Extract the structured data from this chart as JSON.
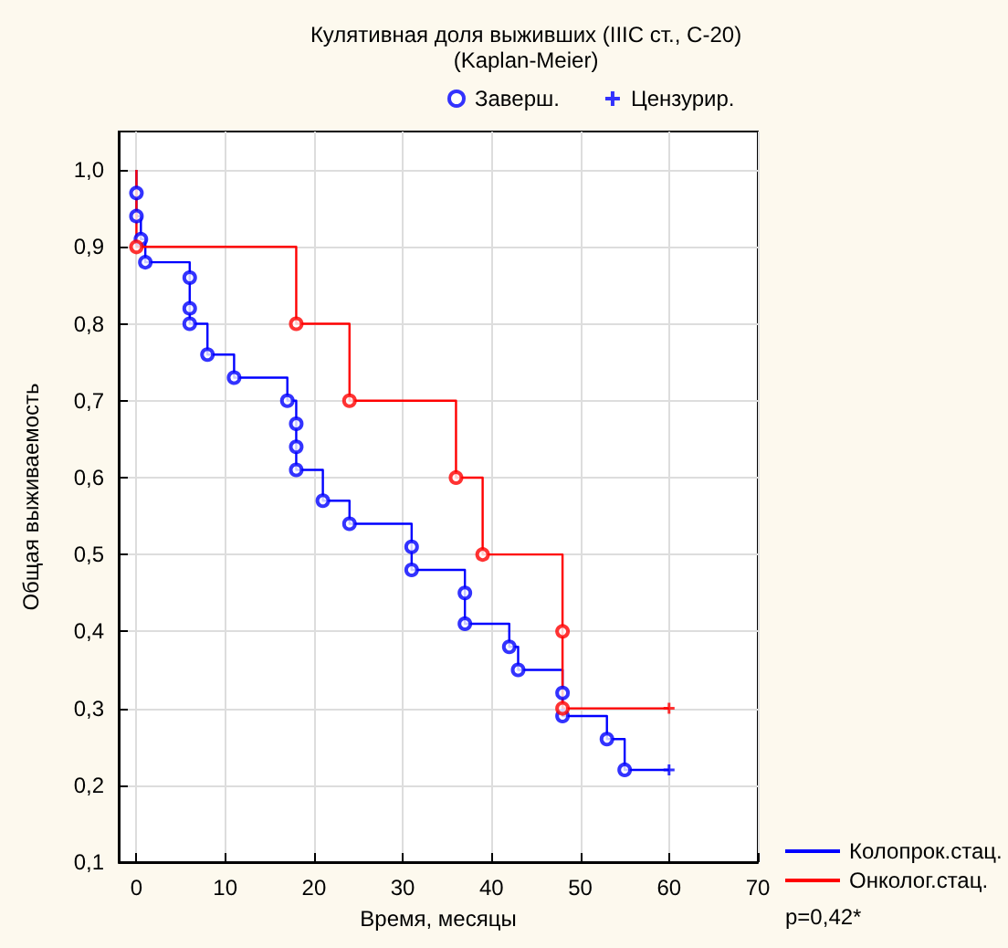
{
  "chart_data": {
    "type": "step",
    "title": "Кулятивная доля выживших (IIIC ст., C-20)",
    "subtitle": "(Kaplan-Meier)",
    "xlabel": "Время, месяцы",
    "ylabel": "Общая выживаемость",
    "xlim": [
      -2,
      70
    ],
    "xticks": [
      0,
      10,
      20,
      30,
      40,
      50,
      60,
      70
    ],
    "ylim": [
      0.1,
      1.05
    ],
    "yticks": [
      {
        "value": 0.1,
        "label": "0,1"
      },
      {
        "value": 0.2,
        "label": "0,2"
      },
      {
        "value": 0.3,
        "label": "0,3"
      },
      {
        "value": 0.4,
        "label": "0,4"
      },
      {
        "value": 0.5,
        "label": "0,5"
      },
      {
        "value": 0.6,
        "label": "0,6"
      },
      {
        "value": 0.7,
        "label": "0,7"
      },
      {
        "value": 0.8,
        "label": "0,8"
      },
      {
        "value": 0.9,
        "label": "0,9"
      },
      {
        "value": 1.0,
        "label": "1,0"
      }
    ],
    "grid": true,
    "legend": "top",
    "annotations": [
      "p=0,42*"
    ],
    "series": [
      {
        "name": "Колопрок.стац.",
        "color": "#0000ff",
        "marker": "none",
        "x": [
          0,
          0,
          0,
          0.5,
          1,
          6,
          6,
          6,
          8,
          11,
          17,
          18,
          18,
          18,
          21,
          24,
          31,
          31,
          37,
          37,
          42,
          43,
          48,
          48,
          53,
          55,
          60
        ],
        "values": [
          1.0,
          0.97,
          0.94,
          0.91,
          0.88,
          0.86,
          0.82,
          0.8,
          0.76,
          0.73,
          0.7,
          0.67,
          0.64,
          0.61,
          0.57,
          0.54,
          0.51,
          0.48,
          0.45,
          0.41,
          0.38,
          0.35,
          0.32,
          0.29,
          0.26,
          0.22,
          0.22
        ]
      },
      {
        "name": "Онколог.стац.",
        "color": "#ff0000",
        "marker": "none",
        "x": [
          0,
          0,
          18,
          24,
          36,
          39,
          48,
          48,
          60
        ],
        "values": [
          1.0,
          0.9,
          0.8,
          0.7,
          0.6,
          0.5,
          0.4,
          0.3,
          0.3
        ]
      },
      {
        "type": "scatter",
        "name": "Заверш.",
        "color": "#0000ff",
        "marker": "circle",
        "x": [
          0,
          0,
          0.5,
          1,
          6,
          6,
          6,
          8,
          11,
          17,
          18,
          18,
          18,
          21,
          24,
          31,
          31,
          37,
          37,
          42,
          43,
          48,
          48,
          53,
          55
        ],
        "values": [
          0.97,
          0.94,
          0.91,
          0.88,
          0.86,
          0.82,
          0.8,
          0.76,
          0.73,
          0.7,
          0.67,
          0.64,
          0.61,
          0.57,
          0.54,
          0.51,
          0.48,
          0.45,
          0.41,
          0.38,
          0.35,
          0.32,
          0.29,
          0.26,
          0.22
        ]
      },
      {
        "type": "scatter",
        "color": "#ff0000",
        "marker": "circle",
        "x": [
          0,
          18,
          24,
          36,
          39,
          48,
          48
        ],
        "values": [
          0.9,
          0.8,
          0.7,
          0.6,
          0.5,
          0.4,
          0.3
        ]
      },
      {
        "type": "scatter",
        "name": "Цензурир.",
        "color": "#0000ff",
        "marker": "cross",
        "x": [
          60
        ],
        "values": [
          0.22
        ]
      },
      {
        "type": "scatter",
        "color": "#ff0000",
        "marker": "cross",
        "x": [
          60
        ],
        "values": [
          0.3
        ]
      }
    ]
  }
}
